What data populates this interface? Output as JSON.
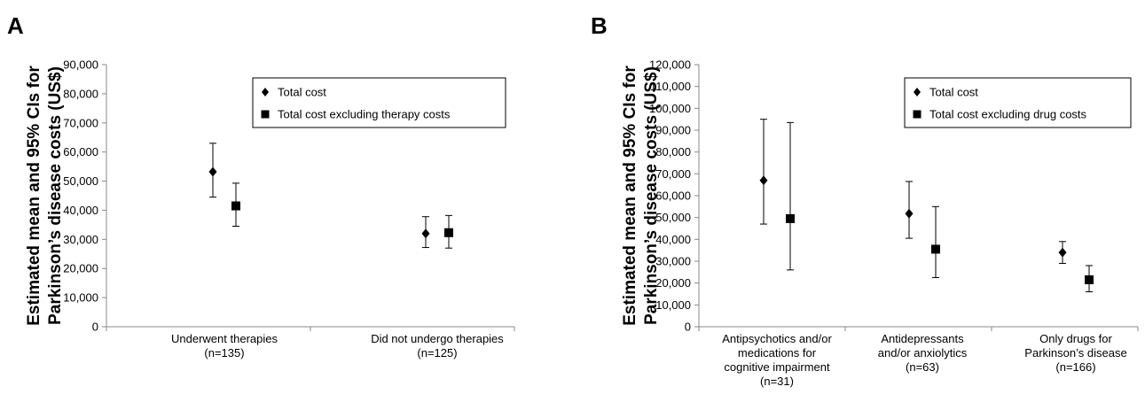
{
  "panel_labels": [
    "A",
    "B"
  ],
  "chart_data": [
    {
      "panel": "A",
      "type": "scatter",
      "ylabel_lines": [
        "Estimated mean and 95% CIs for",
        "Parkinson’s disease costs (US$)"
      ],
      "ylim": [
        0,
        90000
      ],
      "ytick_step": 10000,
      "ytick_labels": [
        "0",
        "10,000",
        "20,000",
        "30,000",
        "40,000",
        "50,000",
        "60,000",
        "70,000",
        "80,000",
        "90,000"
      ],
      "grid": false,
      "legend_position": "top-right",
      "categories": [
        {
          "lines": [
            "Underwent therapies",
            "(n=135)"
          ]
        },
        {
          "lines": [
            "Did not undergo therapies",
            "(n=125)"
          ]
        }
      ],
      "series": [
        {
          "name": "Total cost",
          "marker": "diamond",
          "mean": [
            53200,
            32000
          ],
          "lower": [
            44500,
            27200
          ],
          "upper": [
            63000,
            37800
          ]
        },
        {
          "name": "Total cost excluding therapy costs",
          "marker": "square",
          "mean": [
            41500,
            32300
          ],
          "lower": [
            34500,
            27000
          ],
          "upper": [
            49300,
            38200
          ]
        }
      ]
    },
    {
      "panel": "B",
      "type": "scatter",
      "ylabel_lines": [
        "Estimated mean and 95% CIs for",
        "Parkinson’s disease costs (US$)"
      ],
      "ylim": [
        0,
        120000
      ],
      "ytick_step": 10000,
      "ytick_labels": [
        "0",
        "10,000",
        "20,000",
        "30,000",
        "40,000",
        "50,000",
        "60,000",
        "70,000",
        "80,000",
        "90,000",
        "100,000",
        "110,000",
        "120,000"
      ],
      "grid": false,
      "legend_position": "top-right",
      "categories": [
        {
          "lines": [
            "Antipsychotics and/or",
            "medications for",
            "cognitive impairment",
            "(n=31)"
          ]
        },
        {
          "lines": [
            "Antidepressants",
            "and/or anxiolytics",
            "(n=63)"
          ]
        },
        {
          "lines": [
            "Only drugs for",
            "Parkinson’s disease",
            "(n=166)"
          ]
        }
      ],
      "series": [
        {
          "name": "Total cost",
          "marker": "diamond",
          "mean": [
            67000,
            51800,
            34000
          ],
          "lower": [
            47000,
            40500,
            29000
          ],
          "upper": [
            95000,
            66500,
            39000
          ]
        },
        {
          "name": "Total cost excluding drug costs",
          "marker": "square",
          "mean": [
            49500,
            35500,
            21500
          ],
          "lower": [
            26000,
            22500,
            16000
          ],
          "upper": [
            93500,
            55000,
            28000
          ]
        }
      ]
    }
  ]
}
